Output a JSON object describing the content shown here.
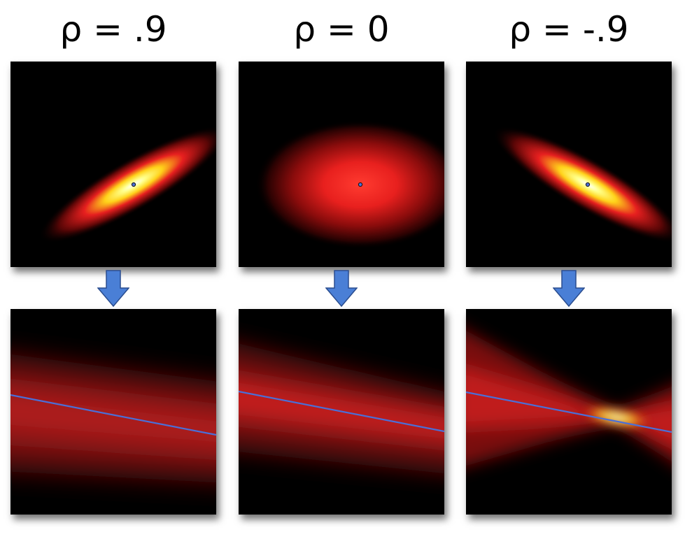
{
  "columns": [
    {
      "label": "ρ = .9",
      "rho": 0.9
    },
    {
      "label": "ρ = 0",
      "rho": 0
    },
    {
      "label": "ρ = -.9",
      "rho": -0.9
    }
  ],
  "colors": {
    "arrow_fill": "#4a7fd6",
    "arrow_stroke": "#2a4d8f",
    "regression_line": "#4a6fd8",
    "panel_background": "#000000",
    "center_dot": "#4a6fd8"
  }
}
